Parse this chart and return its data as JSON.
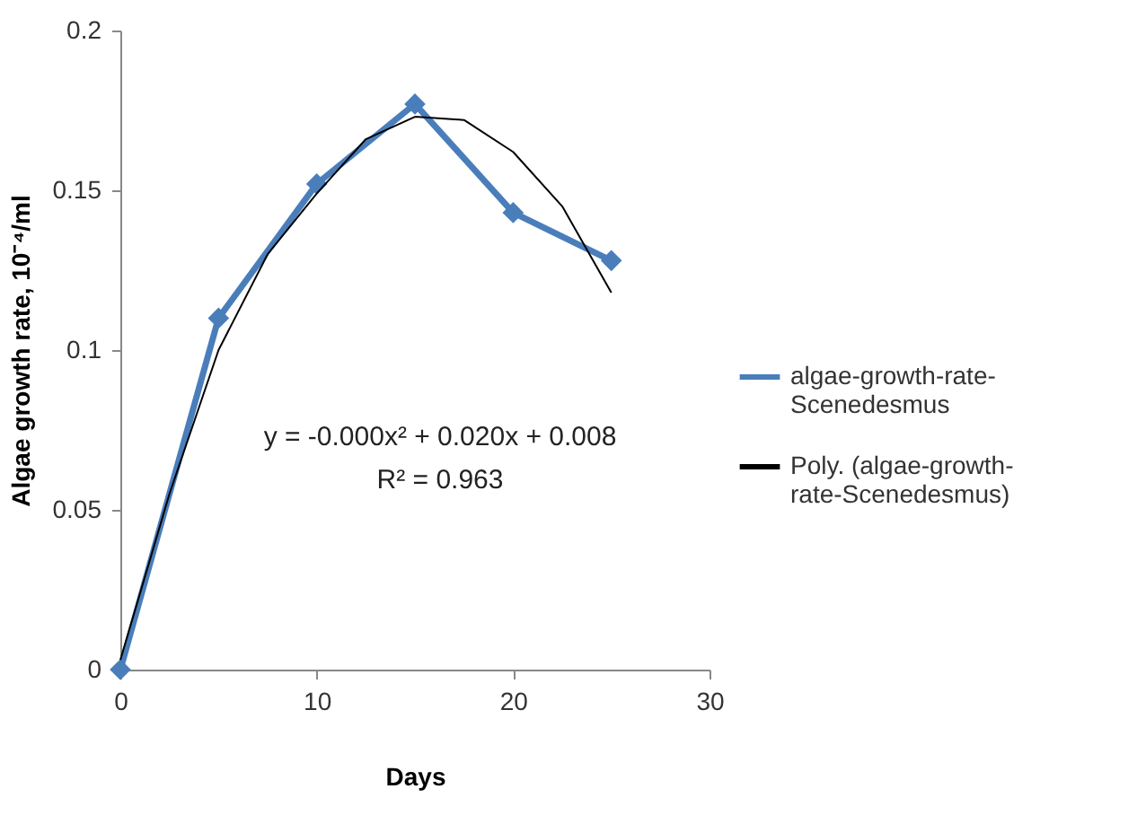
{
  "chart_data": {
    "type": "line",
    "xlabel": "Days",
    "ylabel": "Algae growth rate, 10⁻⁴/ml",
    "xlim": [
      0,
      30
    ],
    "xticks": [
      0,
      10,
      20,
      30
    ],
    "ylim": [
      0,
      0.2
    ],
    "yticks": [
      0,
      0.05,
      0.1,
      0.15,
      0.2
    ],
    "grid": false,
    "legend": "right",
    "marker": "diamond",
    "annotations": [
      "y = -0.000x² + 0.020x + 0.008",
      "R² = 0.963"
    ],
    "series": [
      {
        "name": "algae-growth-rate-Scenedesmus",
        "color": "#4a7ebb",
        "x": [
          0,
          5,
          10,
          15,
          20,
          25
        ],
        "values": [
          0,
          0.11,
          0.152,
          0.177,
          0.143,
          0.128
        ]
      },
      {
        "name": "Poly. (algae-growth-rate-Scenedesmus)",
        "type": "line",
        "marker": "none",
        "color": "#000000",
        "x": [
          0,
          2.5,
          5,
          7.5,
          10,
          12.5,
          15,
          17.5,
          20,
          22.5,
          25
        ],
        "values": [
          0.003,
          0.055,
          0.1,
          0.13,
          0.149,
          0.166,
          0.173,
          0.172,
          0.162,
          0.145,
          0.118
        ]
      }
    ]
  }
}
